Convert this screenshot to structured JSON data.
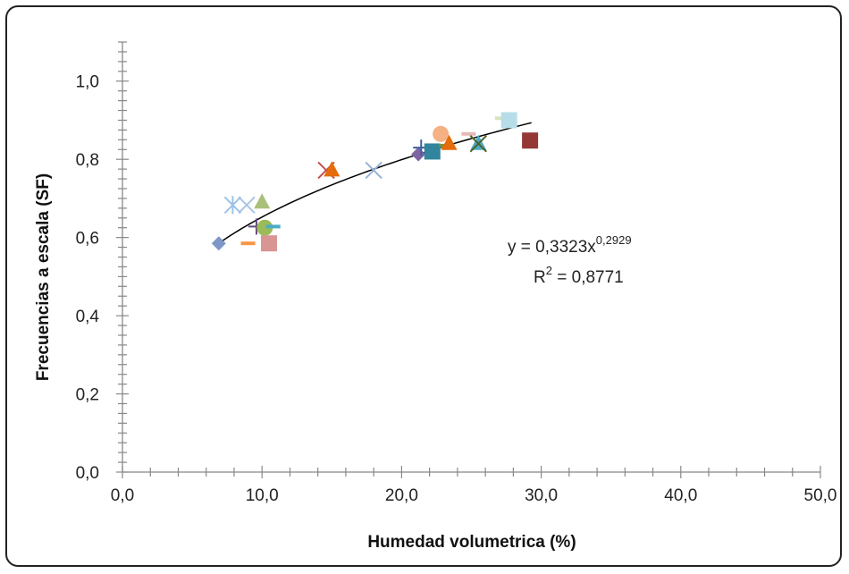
{
  "chart_data": {
    "type": "scatter",
    "title": "",
    "xlabel": "Humedad volumetrica (%)",
    "ylabel": "Frecuencias a escala (SF)",
    "xlim": [
      0,
      50
    ],
    "ylim": [
      0,
      1.1
    ],
    "x_ticks": [
      "0,0",
      "10,0",
      "20,0",
      "30,0",
      "40,0",
      "50,0"
    ],
    "y_ticks": [
      "0,0",
      "0,2",
      "0,4",
      "0,6",
      "0,8",
      "1,0"
    ],
    "grid": false,
    "legend": "none",
    "trendline": {
      "type": "power",
      "a": 0.3323,
      "b": 0.2929,
      "x_range": [
        6.9,
        29.3
      ],
      "equation_prefix": "y = 0,3323x",
      "equation_exponent": "0,2929",
      "r2_prefix": "R",
      "r2_exponent": "2",
      "r2_value": " = 0,8771"
    },
    "points": [
      {
        "x": 6.9,
        "y": 0.585,
        "marker": "diamond",
        "color": "#7f97c6"
      },
      {
        "x": 7.9,
        "y": 0.683,
        "marker": "asterisk",
        "color": "#9dc3e6"
      },
      {
        "x": 8.9,
        "y": 0.683,
        "marker": "cross",
        "color": "#a9c4e4"
      },
      {
        "x": 9.0,
        "y": 0.585,
        "marker": "dash",
        "color": "#f79646"
      },
      {
        "x": 9.6,
        "y": 0.628,
        "marker": "plus",
        "color": "#604a7b"
      },
      {
        "x": 10.0,
        "y": 0.69,
        "marker": "triangle",
        "color": "#a8c07a"
      },
      {
        "x": 10.2,
        "y": 0.625,
        "marker": "circle",
        "color": "#9bbb59"
      },
      {
        "x": 10.8,
        "y": 0.628,
        "marker": "dash",
        "color": "#4bacc6"
      },
      {
        "x": 10.5,
        "y": 0.585,
        "marker": "square",
        "color": "#d99594"
      },
      {
        "x": 14.6,
        "y": 0.772,
        "marker": "cross",
        "color": "#c0504d"
      },
      {
        "x": 15.0,
        "y": 0.772,
        "marker": "triangle",
        "color": "#e46c0a"
      },
      {
        "x": 18.0,
        "y": 0.772,
        "marker": "cross",
        "color": "#95b3d7"
      },
      {
        "x": 21.2,
        "y": 0.813,
        "marker": "diamond",
        "color": "#8064a2"
      },
      {
        "x": 21.4,
        "y": 0.83,
        "marker": "plus",
        "color": "#3f5fa0"
      },
      {
        "x": 22.2,
        "y": 0.82,
        "marker": "square",
        "color": "#31859c"
      },
      {
        "x": 22.8,
        "y": 0.865,
        "marker": "circle",
        "color": "#f4b183"
      },
      {
        "x": 23.2,
        "y": 0.835,
        "marker": "dash",
        "color": "#77933c"
      },
      {
        "x": 23.4,
        "y": 0.84,
        "marker": "triangle",
        "color": "#e46c0a"
      },
      {
        "x": 24.8,
        "y": 0.865,
        "marker": "dash",
        "color": "#e6b9b8"
      },
      {
        "x": 25.5,
        "y": 0.84,
        "marker": "triangle",
        "color": "#4bacc6"
      },
      {
        "x": 25.5,
        "y": 0.84,
        "marker": "cross",
        "color": "#4f6228"
      },
      {
        "x": 27.2,
        "y": 0.905,
        "marker": "dash",
        "color": "#d7e4bd"
      },
      {
        "x": 27.7,
        "y": 0.9,
        "marker": "square",
        "color": "#b7dde8"
      },
      {
        "x": 29.2,
        "y": 0.848,
        "marker": "square",
        "color": "#953735"
      }
    ]
  }
}
